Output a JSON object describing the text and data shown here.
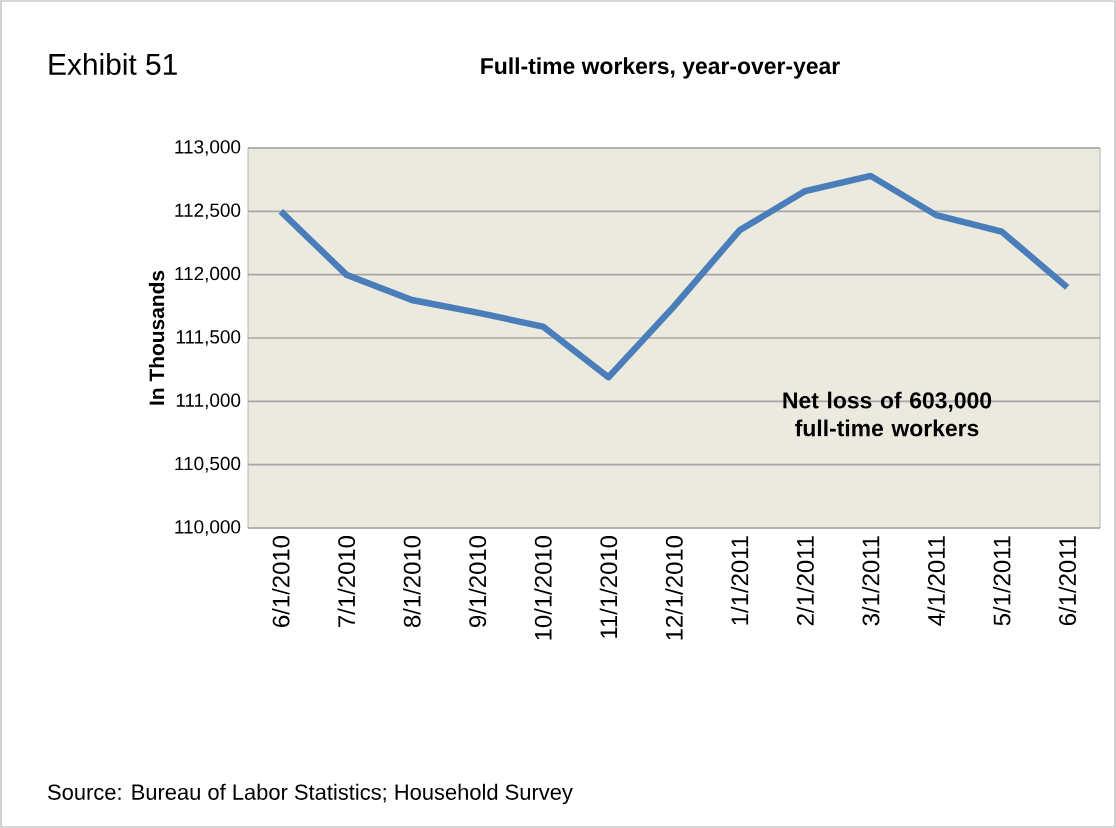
{
  "chart_data": {
    "type": "line",
    "title": "Exhibit 51",
    "subtitle": "Full-time workers, year-over-year",
    "ylabel": "In Thousands",
    "categories": [
      "6/1/2010",
      "7/1/2010",
      "8/1/2010",
      "9/1/2010",
      "10/1/2010",
      "11/1/2010",
      "12/1/2010",
      "1/1/2011",
      "2/1/2011",
      "3/1/2011",
      "4/1/2011",
      "5/1/2011",
      "6/1/2011"
    ],
    "series": [
      {
        "color": "#4a7ebb",
        "values": [
          112500,
          112000,
          111800,
          111700,
          111590,
          111190,
          111750,
          112350,
          112660,
          112780,
          112470,
          112340,
          111900
        ]
      }
    ],
    "ylim": [
      110000,
      113000
    ],
    "yticks": [
      {
        "value": 110000,
        "label": "110,000"
      },
      {
        "value": 110500,
        "label": "110,500"
      },
      {
        "value": 111000,
        "label": "111,000"
      },
      {
        "value": 111500,
        "label": "111,500"
      },
      {
        "value": 112000,
        "label": "112,000"
      },
      {
        "value": 112500,
        "label": "112,500"
      },
      {
        "value": 113000,
        "label": "113,000"
      }
    ],
    "grid": "y",
    "marker": "none",
    "line_style": "solid",
    "annotations": [
      "Net loss of 603,000 full-time workers",
      "Source: Bureau of Labor Statistics; Household Survey"
    ]
  }
}
